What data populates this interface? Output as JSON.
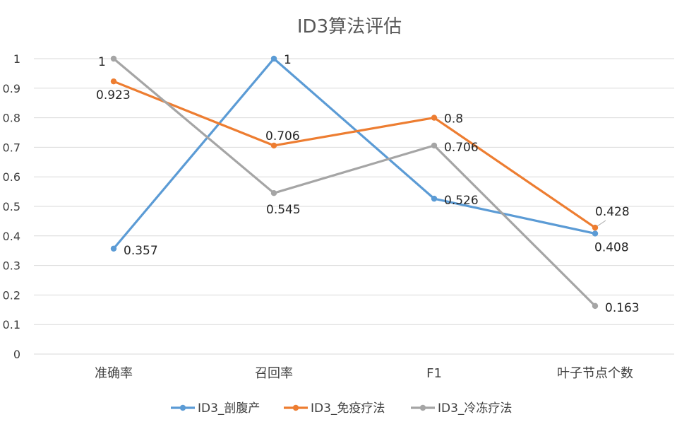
{
  "chart_data": {
    "type": "line",
    "title": "ID3算法评估",
    "xlabel": "",
    "ylabel": "",
    "categories": [
      "准确率",
      "召回率",
      "F1",
      "叶子节点个数"
    ],
    "ylim": [
      0,
      1
    ],
    "yticks": [
      "0",
      "0.1",
      "0.2",
      "0.3",
      "0.4",
      "0.5",
      "0.6",
      "0.7",
      "0.8",
      "0.9",
      "1"
    ],
    "grid": true,
    "legend_position": "bottom",
    "series": [
      {
        "name": "ID3_剖腹产",
        "color": "#5b9bd5",
        "values": [
          0.357,
          1,
          0.526,
          0.408
        ],
        "labels": [
          "0.357",
          "1",
          "0.526",
          "0.408"
        ]
      },
      {
        "name": "ID3_免疫疗法",
        "color": "#ed7d31",
        "values": [
          0.923,
          0.706,
          0.8,
          0.428
        ],
        "labels": [
          "0.923",
          "0.706",
          "0.8",
          "0.428"
        ]
      },
      {
        "name": "ID3_冷冻疗法",
        "color": "#a5a5a5",
        "values": [
          1,
          0.545,
          0.706,
          0.163
        ],
        "labels": [
          "1",
          "0.545",
          "0.706",
          "0.163"
        ]
      }
    ]
  }
}
